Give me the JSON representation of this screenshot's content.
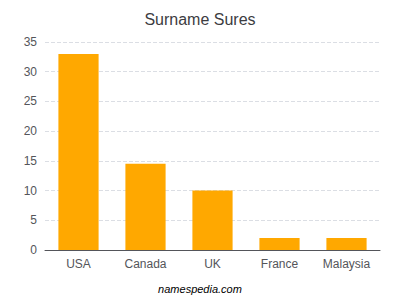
{
  "chart_data": {
    "type": "bar",
    "title": "Surname Sures",
    "categories": [
      "USA",
      "Canada",
      "UK",
      "France",
      "Malaysia"
    ],
    "values": [
      33,
      14.5,
      10,
      2,
      2
    ],
    "color": "#FFA800",
    "ylim": [
      0,
      35
    ],
    "yticks": [
      0,
      5,
      10,
      15,
      20,
      25,
      30,
      35
    ],
    "grid": true,
    "annotations": [
      "namespedia.com"
    ]
  }
}
